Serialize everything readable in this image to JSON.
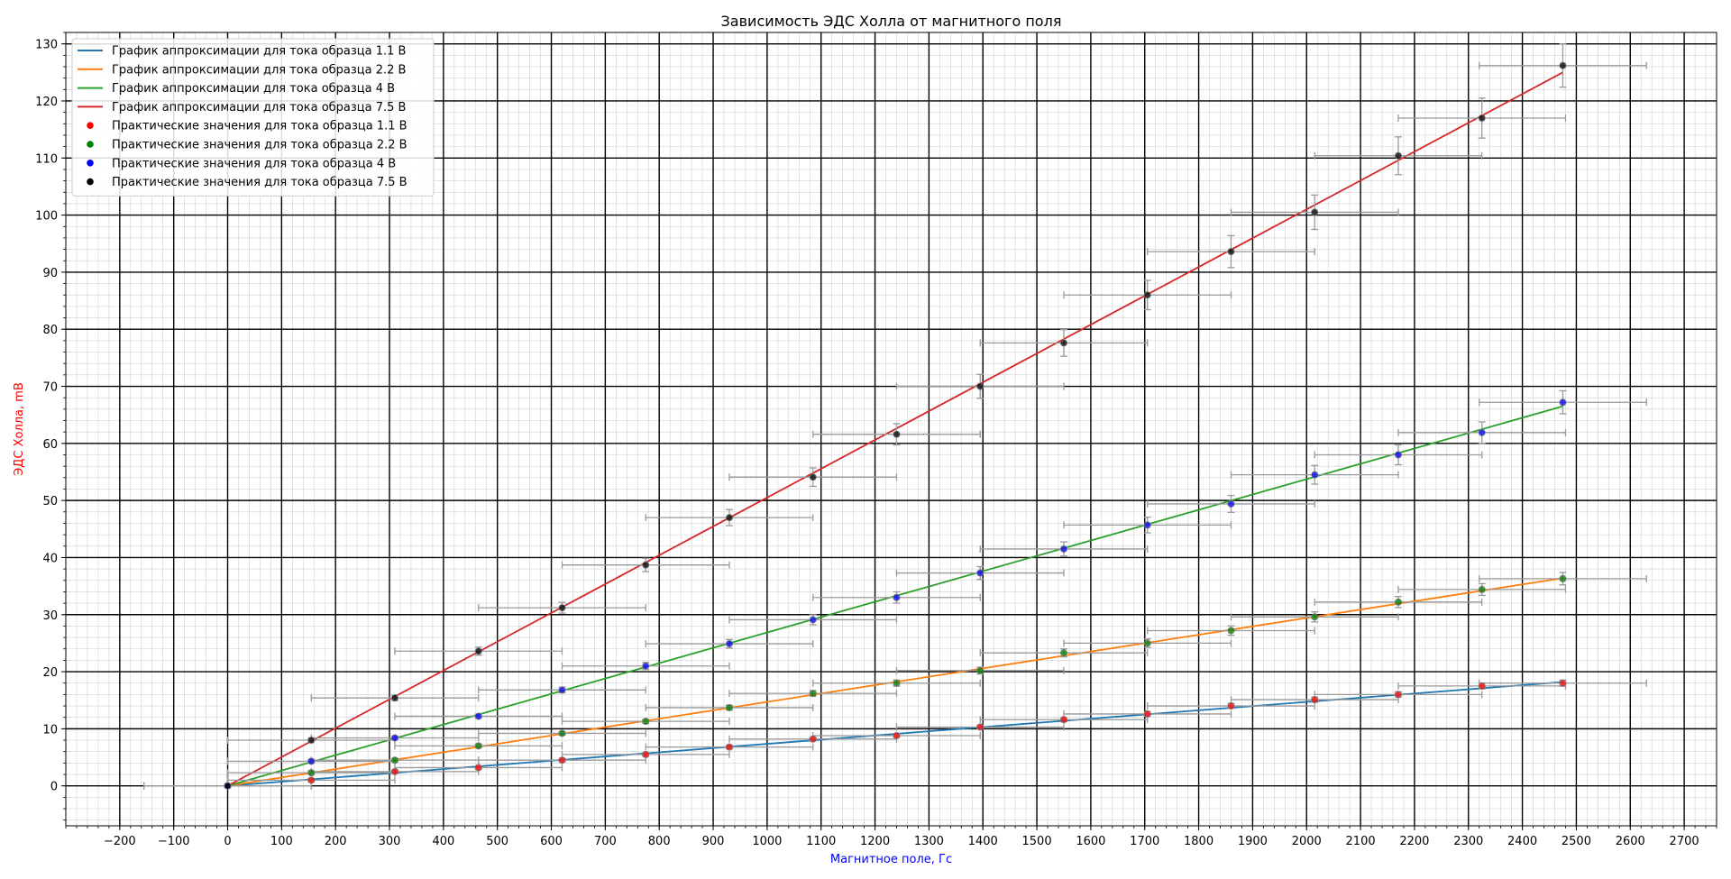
{
  "chart_data": {
    "type": "scatter",
    "title": "Зависимость ЭДС Холла от магнитного поля",
    "xlabel": "Магнитное поле, Гс",
    "ylabel": "ЭДС Холла, mВ",
    "xlabel_color": "#0000ff",
    "ylabel_color": "#ff0000",
    "xlim": [
      -300,
      2760
    ],
    "ylim": [
      -7,
      132
    ],
    "x_ticks": [
      -200,
      -100,
      0,
      100,
      200,
      300,
      400,
      500,
      600,
      700,
      800,
      900,
      1000,
      1100,
      1200,
      1300,
      1400,
      1500,
      1600,
      1700,
      1800,
      1900,
      2000,
      2100,
      2200,
      2300,
      2400,
      2500,
      2600,
      2700
    ],
    "y_ticks": [
      0,
      10,
      20,
      30,
      40,
      50,
      60,
      70,
      80,
      90,
      100,
      110,
      120,
      130
    ],
    "grid": true,
    "legend_position": "top-left",
    "x_error": 155,
    "y_error_fraction": 0.03,
    "fit_lines": [
      {
        "name": "График аппроксимации для тока образца 1.1 В",
        "color": "#1f77b4",
        "x": [
          0,
          2475
        ],
        "y": [
          0,
          18.2
        ]
      },
      {
        "name": "График аппроксимации для тока образца 2.2 В",
        "color": "#ff7f0e",
        "x": [
          0,
          2475
        ],
        "y": [
          0,
          36.4
        ]
      },
      {
        "name": "График аппроксимации для тока образца 4 В",
        "color": "#2ca02c",
        "x": [
          0,
          2475
        ],
        "y": [
          0,
          66.5
        ]
      },
      {
        "name": "График аппроксимации для тока образца 7.5 В",
        "color": "#d62728",
        "x": [
          0,
          2475
        ],
        "y": [
          0,
          125
        ]
      }
    ],
    "series": [
      {
        "name": "Практические значения для тока образца 1.1 В",
        "color": "#ff0000",
        "x": [
          0,
          155,
          310,
          465,
          620,
          775,
          930,
          1085,
          1240,
          1395,
          1550,
          1705,
          1860,
          2015,
          2170,
          2325,
          2475
        ],
        "y": [
          0,
          1.0,
          2.5,
          3.2,
          4.5,
          5.5,
          6.8,
          8.2,
          8.8,
          10.3,
          11.6,
          12.6,
          14.0,
          15.1,
          16.0,
          17.5,
          18.0
        ]
      },
      {
        "name": "Практические значения для тока образца 2.2 В",
        "color": "#008000",
        "x": [
          0,
          155,
          310,
          465,
          620,
          775,
          930,
          1085,
          1240,
          1395,
          1550,
          1705,
          1860,
          2015,
          2170,
          2325,
          2475
        ],
        "y": [
          0,
          2.3,
          4.5,
          7.0,
          9.2,
          11.3,
          13.7,
          16.2,
          18.0,
          20.2,
          23.3,
          25.0,
          27.2,
          29.6,
          32.2,
          34.4,
          36.3
        ]
      },
      {
        "name": "Практические значения для тока образца 4 В",
        "color": "#0000ff",
        "x": [
          0,
          155,
          310,
          465,
          620,
          775,
          930,
          1085,
          1240,
          1395,
          1550,
          1705,
          1860,
          2015,
          2170,
          2325,
          2475
        ],
        "y": [
          0,
          4.3,
          8.4,
          12.2,
          16.8,
          21.0,
          24.9,
          29.1,
          33.0,
          37.3,
          41.5,
          45.7,
          49.4,
          54.5,
          58.0,
          61.9,
          67.2
        ]
      },
      {
        "name": "Практические значения для тока образца 7.5 В",
        "color": "#000000",
        "x": [
          0,
          155,
          310,
          465,
          620,
          775,
          930,
          1085,
          1240,
          1395,
          1550,
          1705,
          1860,
          2015,
          2170,
          2325,
          2475
        ],
        "y": [
          0,
          8.0,
          15.4,
          23.6,
          31.2,
          38.7,
          47.0,
          54.1,
          61.6,
          70.0,
          77.6,
          86.0,
          93.6,
          100.5,
          110.4,
          117.0,
          126.2
        ]
      }
    ]
  }
}
